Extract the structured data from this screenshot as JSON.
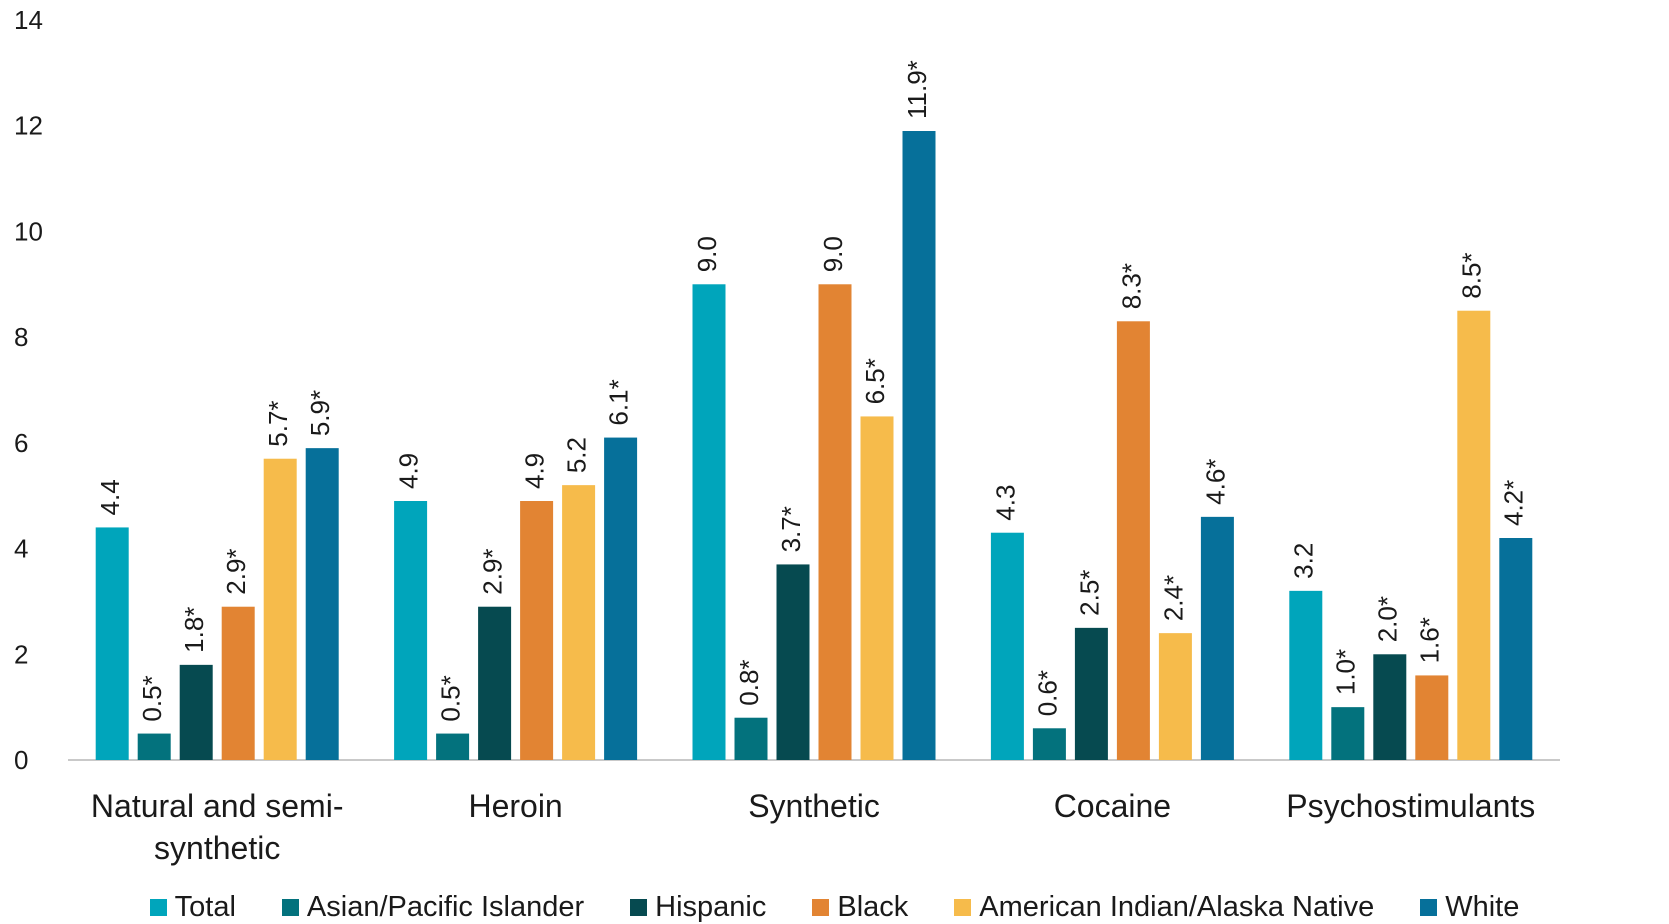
{
  "chart_data": {
    "type": "bar",
    "title": "",
    "xlabel": "",
    "ylabel": "",
    "ylim": [
      0,
      14
    ],
    "yticks": [
      0,
      2,
      4,
      6,
      8,
      10,
      12,
      14
    ],
    "grid": false,
    "legend_position": "bottom",
    "categories": [
      [
        "Natural and semi-",
        "synthetic"
      ],
      [
        "Heroin"
      ],
      [
        "Synthetic"
      ],
      [
        "Cocaine"
      ],
      [
        "Psychostimulants"
      ]
    ],
    "series": [
      {
        "name": "Total",
        "color": "#00a5bb",
        "values": [
          4.4,
          4.9,
          9.0,
          4.3,
          3.2
        ],
        "labels": [
          "4.4",
          "4.9",
          "9.0",
          "4.3",
          "3.2"
        ]
      },
      {
        "name": "Asian/Pacific Islander",
        "color": "#03727d",
        "values": [
          0.5,
          0.5,
          0.8,
          0.6,
          1.0
        ],
        "labels": [
          "0.5*",
          "0.5*",
          "0.8*",
          "0.6*",
          "1.0*"
        ]
      },
      {
        "name": "Hispanic",
        "color": "#064a50",
        "values": [
          1.8,
          2.9,
          3.7,
          2.5,
          2.0
        ],
        "labels": [
          "1.8*",
          "2.9*",
          "3.7*",
          "2.5*",
          "2.0*"
        ]
      },
      {
        "name": "Black",
        "color": "#e28433",
        "values": [
          2.9,
          4.9,
          9.0,
          8.3,
          1.6
        ],
        "labels": [
          "2.9*",
          "4.9",
          "9.0",
          "8.3*",
          "1.6*"
        ]
      },
      {
        "name": "American Indian/Alaska Native",
        "color": "#f6bb4b",
        "values": [
          5.7,
          5.2,
          6.5,
          2.4,
          8.5
        ],
        "labels": [
          "5.7*",
          "5.2",
          "6.5*",
          "2.4*",
          "8.5*"
        ]
      },
      {
        "name": "White",
        "color": "#06709a",
        "values": [
          5.9,
          6.1,
          11.9,
          4.6,
          4.2
        ],
        "labels": [
          "5.9*",
          "6.1*",
          "11.9*",
          "4.6*",
          "4.2*"
        ]
      }
    ]
  }
}
